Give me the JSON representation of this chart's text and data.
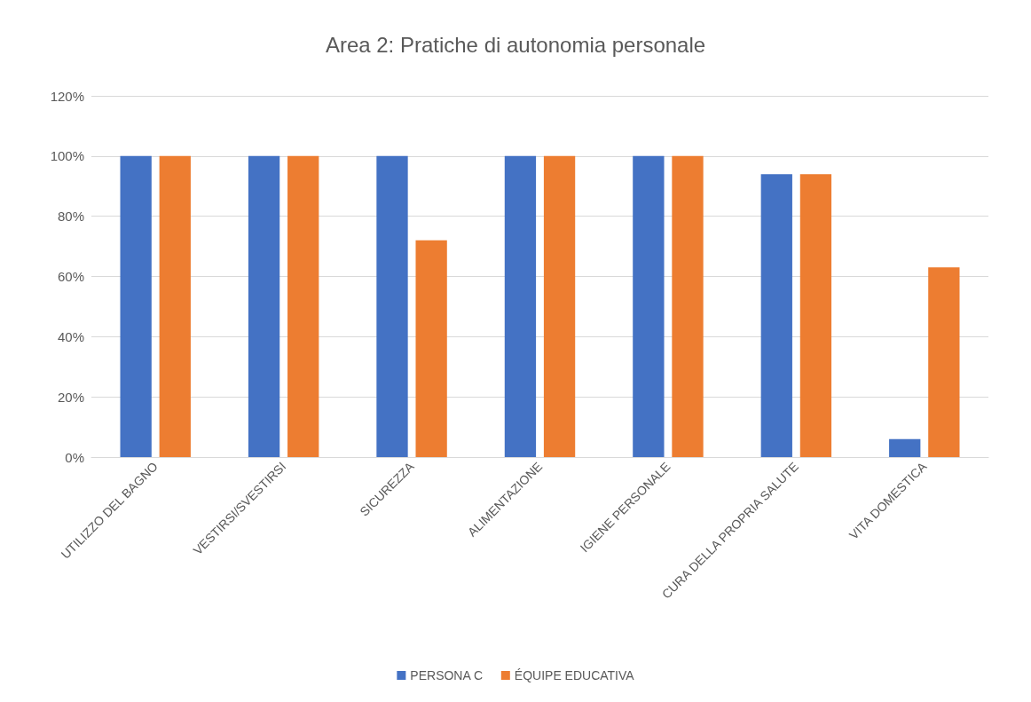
{
  "chart_data": {
    "type": "bar",
    "title": "Area 2: Pratiche di autonomia personale",
    "categories": [
      "UTILIZZO DEL BAGNO",
      "VESTIRSI/SVESTIRSI",
      "SICUREZZA",
      "ALIMENTAZIONE",
      "IGIENE PERSONALE",
      "CURA DELLA PROPRIA SALUTE",
      "VITA DOMESTICA"
    ],
    "series": [
      {
        "name": "PERSONA C",
        "color": "#4472c4",
        "values": [
          100,
          100,
          100,
          100,
          100,
          94,
          6
        ]
      },
      {
        "name": "ÉQUIPE EDUCATIVA",
        "color": "#ed7d31",
        "values": [
          100,
          100,
          72,
          100,
          100,
          94,
          63
        ]
      }
    ],
    "ylim": [
      0,
      120
    ],
    "yticks": [
      {
        "value": 0,
        "label": "0%"
      },
      {
        "value": 20,
        "label": "20%"
      },
      {
        "value": 40,
        "label": "40%"
      },
      {
        "value": 60,
        "label": "60%"
      },
      {
        "value": 80,
        "label": "80%"
      },
      {
        "value": 100,
        "label": "100%"
      },
      {
        "value": 120,
        "label": "120%"
      }
    ],
    "grid": "y",
    "legend": "bottom"
  }
}
